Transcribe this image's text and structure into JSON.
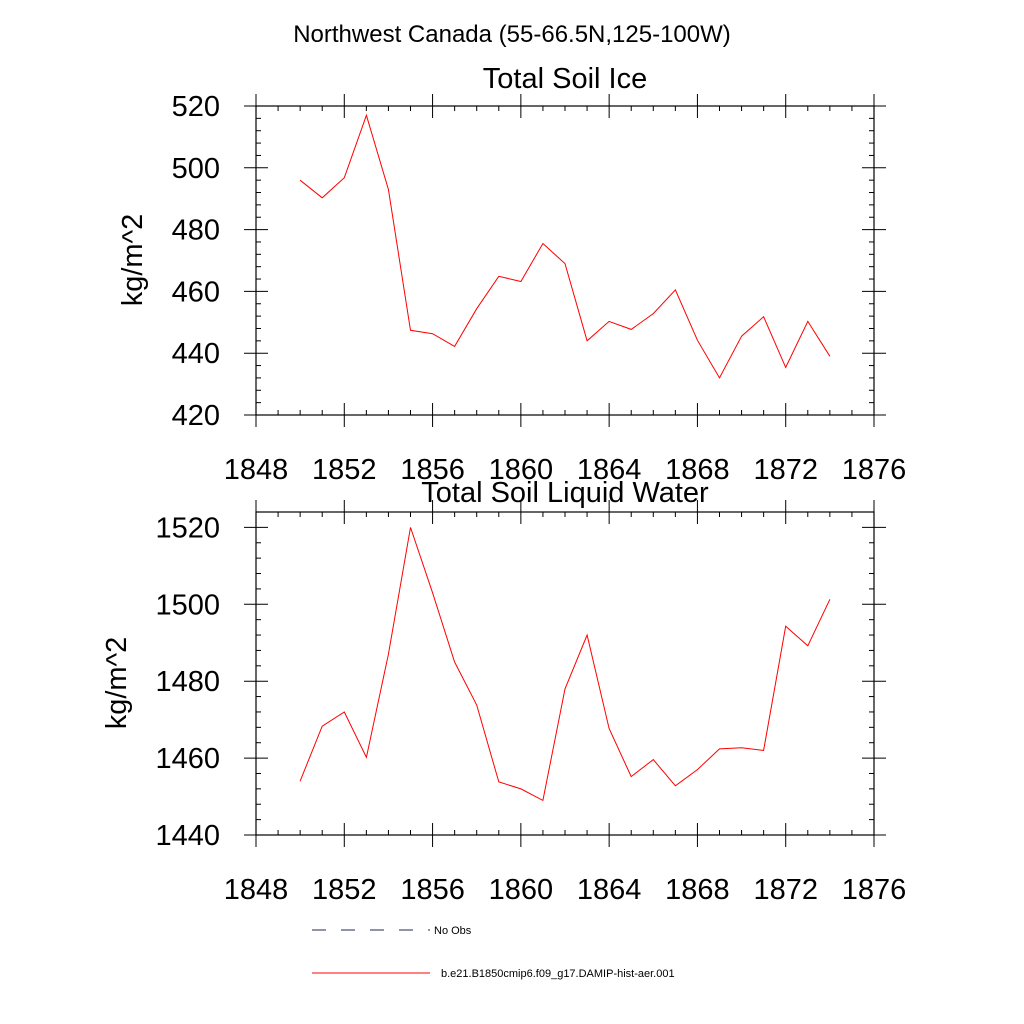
{
  "figure": {
    "title": "Northwest Canada (55-66.5N,125-100W)"
  },
  "legend": {
    "entries": [
      {
        "label": "No Obs",
        "color": "#1f2a5a",
        "style": "dashed"
      },
      {
        "label": "b.e21.B1850cmip6.f09_g17.DAMIP-hist-aer.001",
        "color": "#ff0000",
        "style": "solid"
      }
    ]
  },
  "chart_data": [
    {
      "type": "line",
      "title": "Total Soil Ice",
      "xlabel": "",
      "ylabel": "kg/m^2",
      "xlim": [
        1848,
        1876
      ],
      "ylim": [
        420,
        520
      ],
      "xticks": [
        1848,
        1852,
        1856,
        1860,
        1864,
        1868,
        1872,
        1876
      ],
      "yticks": [
        420,
        440,
        460,
        480,
        500,
        520
      ],
      "x_minor_step": 1,
      "y_minor_step": 4,
      "grid": false,
      "series": [
        {
          "name": "b.e21.B1850cmip6.f09_g17.DAMIP-hist-aer.001",
          "color": "#ff0000",
          "x": [
            1850,
            1851,
            1852,
            1853,
            1854,
            1855,
            1856,
            1857,
            1858,
            1859,
            1860,
            1861,
            1862,
            1863,
            1864,
            1865,
            1866,
            1867,
            1868,
            1869,
            1870,
            1871,
            1872,
            1873,
            1874
          ],
          "values": [
            496,
            490.3,
            496.8,
            517,
            493,
            447.4,
            446.3,
            442.2,
            454.4,
            464.9,
            463.2,
            475.5,
            469,
            444,
            450.3,
            447.7,
            452.8,
            460.5,
            444.2,
            432,
            445.5,
            451.8,
            435.4,
            450.3,
            439
          ]
        }
      ]
    },
    {
      "type": "line",
      "title": "Total Soil Liquid Water",
      "xlabel": "",
      "ylabel": "kg/m^2",
      "xlim": [
        1848,
        1876
      ],
      "ylim": [
        1440,
        1524
      ],
      "xticks": [
        1848,
        1852,
        1856,
        1860,
        1864,
        1868,
        1872,
        1876
      ],
      "yticks": [
        1440,
        1460,
        1480,
        1500,
        1520
      ],
      "x_minor_step": 1,
      "y_minor_step": 4,
      "grid": false,
      "series": [
        {
          "name": "b.e21.B1850cmip6.f09_g17.DAMIP-hist-aer.001",
          "color": "#ff0000",
          "x": [
            1850,
            1851,
            1852,
            1853,
            1854,
            1855,
            1856,
            1857,
            1858,
            1859,
            1860,
            1861,
            1862,
            1863,
            1864,
            1865,
            1866,
            1867,
            1868,
            1869,
            1870,
            1871,
            1872,
            1873,
            1874
          ],
          "values": [
            1454,
            1468.3,
            1472,
            1460.2,
            1487,
            1520,
            1503,
            1485,
            1473.8,
            1453.8,
            1452,
            1449,
            1478,
            1492,
            1467.7,
            1455.2,
            1459.6,
            1452.8,
            1457,
            1462.4,
            1462.7,
            1462,
            1494.3,
            1489.2,
            1501.3
          ]
        }
      ]
    }
  ]
}
